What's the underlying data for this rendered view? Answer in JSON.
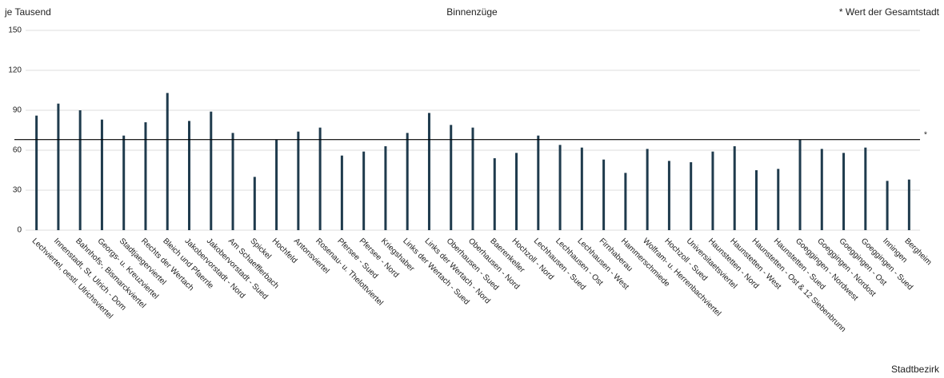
{
  "chart_data": {
    "type": "bar",
    "title": "Binnenzüge",
    "y_label": "je Tausend",
    "x_label": "Stadtbezirk",
    "annotation": "* Wert der Gesamtstadt",
    "reference_line": {
      "value": 68,
      "label": "*"
    },
    "categories": [
      "Lechviertel, oestl. Ulrichsviertel",
      "Innenstadt, St. Ulrich - Dom",
      "Bahnhofs-, Bismarckviertel",
      "Georgs- u. Kreuzviertel",
      "Stadtjaegerviertel",
      "Rechts der Wertach",
      "Bleich und Pfaerrle",
      "Jakobervorstadt - Nord",
      "Jakobervorstadt - Sued",
      "Am Schaefflerbach",
      "Spickel",
      "Hochfeld",
      "Antonsviertel",
      "Rosenau- u. Thelottviertel",
      "Pfersee - Sued",
      "Pfersee - Nord",
      "Kriegshaber",
      "Links der Wertach - Sued",
      "Links der Wertach - Nord",
      "Oberhausen - Sued",
      "Oberhausen - Nord",
      "Baerenkeller",
      "Hochzoll - Nord",
      "Lechhausen - Sued",
      "Lechhausen - Ost",
      "Lechhausen - West",
      "Firnhaberau",
      "Hammerschmiede",
      "Wolfram- u. Herrenbachviertel",
      "Hochzoll - Sued",
      "Universitaetsviertel",
      "Haunstetten - Nord",
      "Haunstetten - West",
      "Haunstetten - Ost & 12 Siebenbrunn",
      "Haunstetten - Sued",
      "Goeggingen - Nordwest",
      "Goeggingen - Nordost",
      "Goeggingen - Ost",
      "Goeggingen - Sued",
      "Inningen",
      "Bergheim"
    ],
    "values": [
      86,
      95,
      90,
      83,
      71,
      81,
      103,
      82,
      89,
      73,
      40,
      68,
      74,
      77,
      56,
      59,
      63,
      73,
      88,
      79,
      77,
      54,
      58,
      71,
      64,
      62,
      53,
      43,
      61,
      52,
      51,
      59,
      63,
      45,
      46,
      68,
      61,
      58,
      62,
      37,
      38
    ],
    "color": "#1f3b4d",
    "ylim": [
      0,
      150
    ],
    "yticks": [
      0,
      30,
      60,
      90,
      120,
      150
    ],
    "grid": true
  }
}
